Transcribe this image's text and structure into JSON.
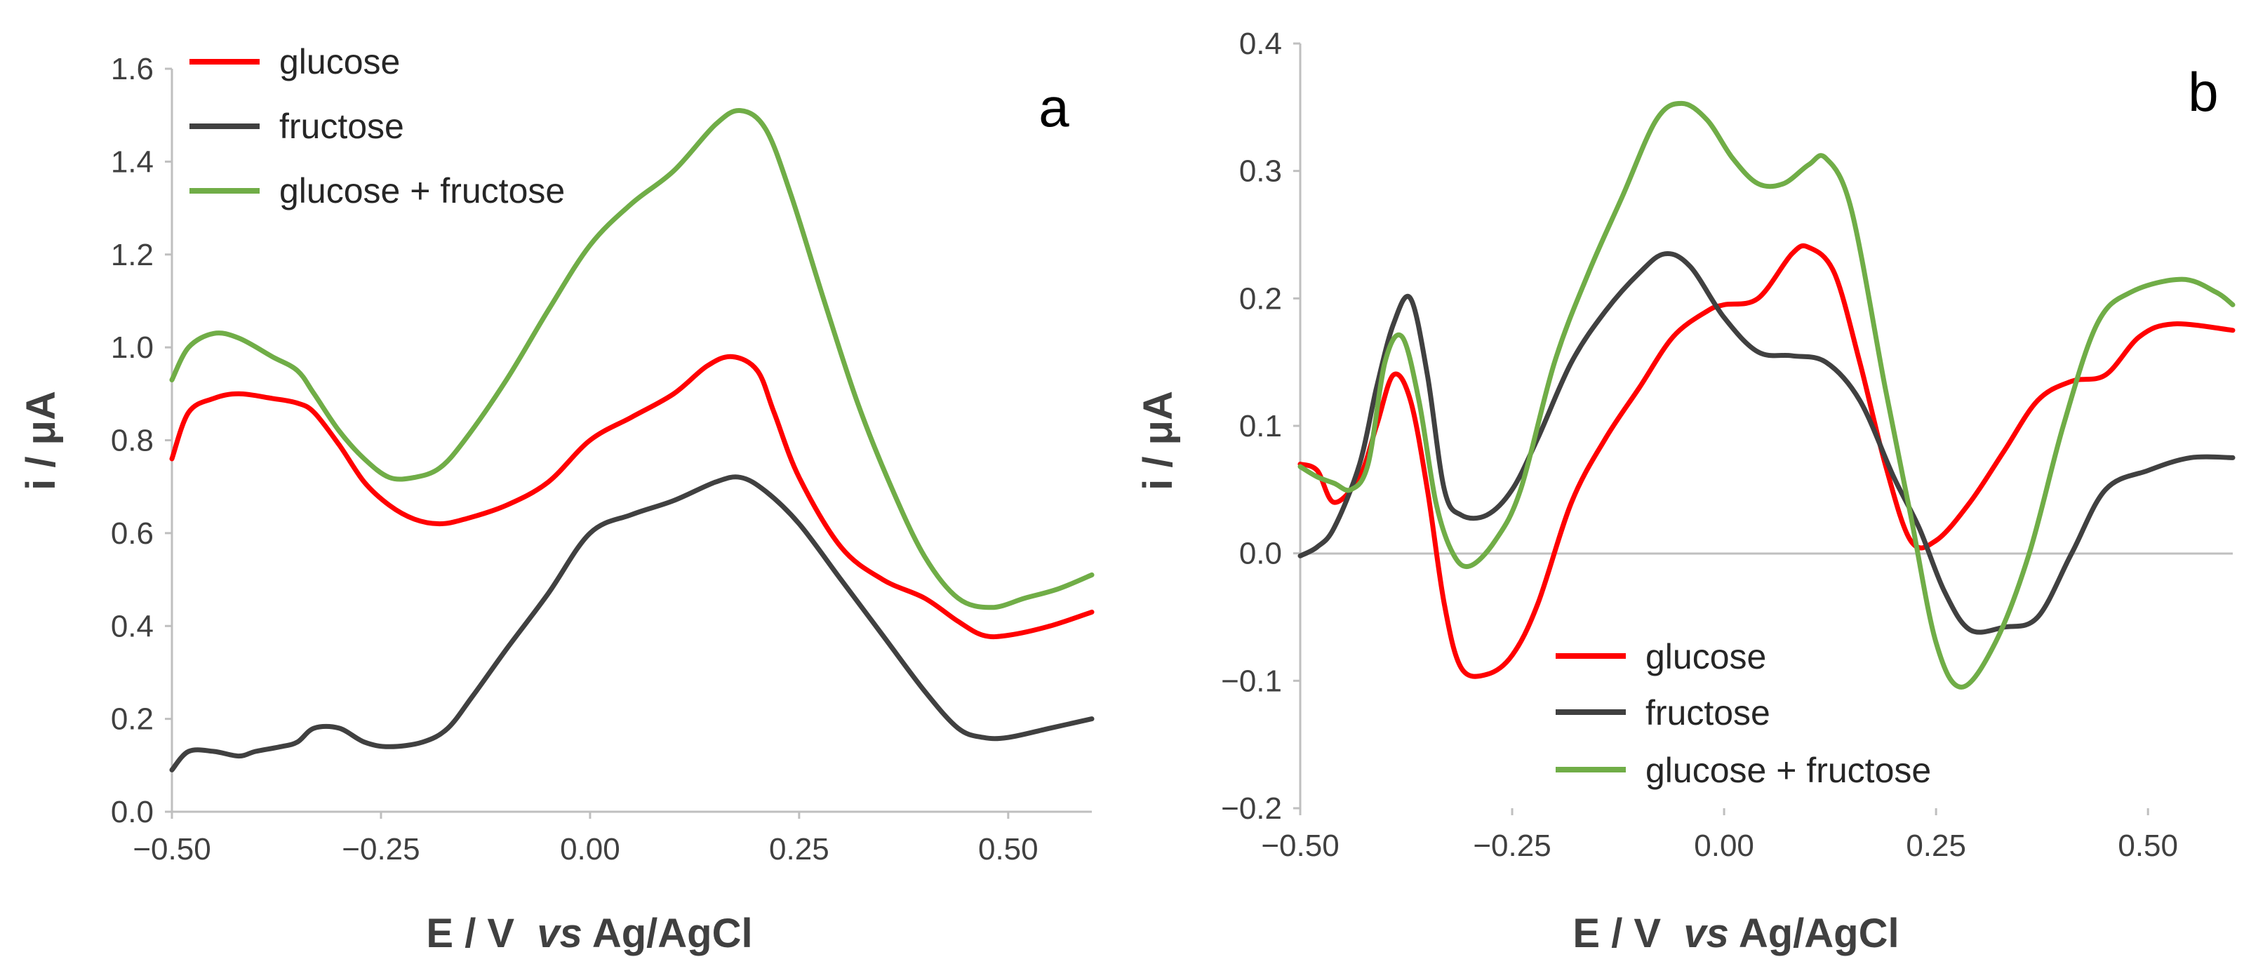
{
  "chart_data": [
    {
      "type": "line",
      "panel_label": "a",
      "xlabel_pre": "E / V  ",
      "xlabel_italic": "vs",
      "xlabel_post": " Ag/AgCl",
      "ylabel": "i / μA",
      "xlim": [
        -0.5,
        0.6
      ],
      "ylim": [
        0.0,
        1.6
      ],
      "x_ticks": [
        -0.5,
        -0.25,
        0.0,
        0.25,
        0.5
      ],
      "x_tick_labels": [
        "−0.50",
        "−0.25",
        "0.00",
        "0.25",
        "0.50"
      ],
      "y_ticks": [
        0.0,
        0.2,
        0.4,
        0.6,
        0.8,
        1.0,
        1.2,
        1.4,
        1.6
      ],
      "y_tick_labels": [
        "0.0",
        "0.2",
        "0.4",
        "0.6",
        "0.8",
        "1.0",
        "1.2",
        "1.4",
        "1.6"
      ],
      "legend_position": "top-left",
      "series": [
        {
          "name": "glucose",
          "color": "#ff0000",
          "points": [
            [
              -0.5,
              0.76
            ],
            [
              -0.48,
              0.86
            ],
            [
              -0.45,
              0.89
            ],
            [
              -0.42,
              0.9
            ],
            [
              -0.38,
              0.89
            ],
            [
              -0.35,
              0.88
            ],
            [
              -0.33,
              0.86
            ],
            [
              -0.3,
              0.79
            ],
            [
              -0.27,
              0.71
            ],
            [
              -0.24,
              0.66
            ],
            [
              -0.21,
              0.63
            ],
            [
              -0.18,
              0.62
            ],
            [
              -0.15,
              0.63
            ],
            [
              -0.1,
              0.66
            ],
            [
              -0.05,
              0.71
            ],
            [
              0.0,
              0.8
            ],
            [
              0.05,
              0.85
            ],
            [
              0.1,
              0.9
            ],
            [
              0.14,
              0.96
            ],
            [
              0.17,
              0.98
            ],
            [
              0.2,
              0.95
            ],
            [
              0.22,
              0.86
            ],
            [
              0.25,
              0.72
            ],
            [
              0.3,
              0.57
            ],
            [
              0.35,
              0.5
            ],
            [
              0.4,
              0.46
            ],
            [
              0.44,
              0.41
            ],
            [
              0.47,
              0.38
            ],
            [
              0.5,
              0.38
            ],
            [
              0.55,
              0.4
            ],
            [
              0.6,
              0.43
            ]
          ]
        },
        {
          "name": "fructose",
          "color": "#404040",
          "points": [
            [
              -0.5,
              0.09
            ],
            [
              -0.48,
              0.13
            ],
            [
              -0.45,
              0.13
            ],
            [
              -0.42,
              0.12
            ],
            [
              -0.4,
              0.13
            ],
            [
              -0.37,
              0.14
            ],
            [
              -0.35,
              0.15
            ],
            [
              -0.33,
              0.18
            ],
            [
              -0.3,
              0.18
            ],
            [
              -0.27,
              0.15
            ],
            [
              -0.24,
              0.14
            ],
            [
              -0.2,
              0.15
            ],
            [
              -0.17,
              0.18
            ],
            [
              -0.14,
              0.25
            ],
            [
              -0.1,
              0.35
            ],
            [
              -0.05,
              0.47
            ],
            [
              0.0,
              0.6
            ],
            [
              0.05,
              0.64
            ],
            [
              0.1,
              0.67
            ],
            [
              0.15,
              0.71
            ],
            [
              0.18,
              0.72
            ],
            [
              0.21,
              0.69
            ],
            [
              0.25,
              0.62
            ],
            [
              0.3,
              0.5
            ],
            [
              0.35,
              0.38
            ],
            [
              0.4,
              0.26
            ],
            [
              0.44,
              0.18
            ],
            [
              0.47,
              0.16
            ],
            [
              0.5,
              0.16
            ],
            [
              0.55,
              0.18
            ],
            [
              0.6,
              0.2
            ]
          ]
        },
        {
          "name": "glucose + fructose",
          "color": "#70ad47",
          "points": [
            [
              -0.5,
              0.93
            ],
            [
              -0.48,
              1.0
            ],
            [
              -0.45,
              1.03
            ],
            [
              -0.42,
              1.02
            ],
            [
              -0.38,
              0.98
            ],
            [
              -0.35,
              0.95
            ],
            [
              -0.33,
              0.9
            ],
            [
              -0.3,
              0.82
            ],
            [
              -0.27,
              0.76
            ],
            [
              -0.24,
              0.72
            ],
            [
              -0.21,
              0.72
            ],
            [
              -0.18,
              0.74
            ],
            [
              -0.15,
              0.8
            ],
            [
              -0.1,
              0.93
            ],
            [
              -0.05,
              1.08
            ],
            [
              0.0,
              1.22
            ],
            [
              0.05,
              1.31
            ],
            [
              0.1,
              1.38
            ],
            [
              0.15,
              1.48
            ],
            [
              0.18,
              1.51
            ],
            [
              0.21,
              1.47
            ],
            [
              0.24,
              1.33
            ],
            [
              0.28,
              1.1
            ],
            [
              0.32,
              0.88
            ],
            [
              0.36,
              0.7
            ],
            [
              0.4,
              0.55
            ],
            [
              0.44,
              0.46
            ],
            [
              0.48,
              0.44
            ],
            [
              0.52,
              0.46
            ],
            [
              0.56,
              0.48
            ],
            [
              0.6,
              0.51
            ]
          ]
        }
      ]
    },
    {
      "type": "line",
      "panel_label": "b",
      "xlabel_pre": "E / V  ",
      "xlabel_italic": "vs",
      "xlabel_post": " Ag/AgCl",
      "ylabel": "i / μA",
      "xlim": [
        -0.5,
        0.6
      ],
      "ylim": [
        -0.2,
        0.4
      ],
      "x_ticks": [
        -0.5,
        -0.25,
        0.0,
        0.25,
        0.5
      ],
      "x_tick_labels": [
        "−0.50",
        "−0.25",
        "0.00",
        "0.25",
        "0.50"
      ],
      "y_ticks": [
        -0.2,
        -0.1,
        0.0,
        0.1,
        0.2,
        0.3,
        0.4
      ],
      "y_tick_labels": [
        "−0.2",
        "−0.1",
        "0.0",
        "0.1",
        "0.2",
        "0.3",
        "0.4"
      ],
      "legend_position": "bottom-center",
      "series": [
        {
          "name": "glucose",
          "color": "#ff0000",
          "points": [
            [
              -0.5,
              0.07
            ],
            [
              -0.48,
              0.065
            ],
            [
              -0.46,
              0.04
            ],
            [
              -0.43,
              0.06
            ],
            [
              -0.41,
              0.1
            ],
            [
              -0.39,
              0.14
            ],
            [
              -0.37,
              0.12
            ],
            [
              -0.35,
              0.05
            ],
            [
              -0.33,
              -0.04
            ],
            [
              -0.31,
              -0.09
            ],
            [
              -0.28,
              -0.095
            ],
            [
              -0.25,
              -0.08
            ],
            [
              -0.22,
              -0.04
            ],
            [
              -0.18,
              0.04
            ],
            [
              -0.14,
              0.09
            ],
            [
              -0.1,
              0.13
            ],
            [
              -0.06,
              0.17
            ],
            [
              -0.02,
              0.19
            ],
            [
              0.0,
              0.195
            ],
            [
              0.04,
              0.2
            ],
            [
              0.08,
              0.235
            ],
            [
              0.1,
              0.24
            ],
            [
              0.13,
              0.22
            ],
            [
              0.16,
              0.15
            ],
            [
              0.19,
              0.07
            ],
            [
              0.22,
              0.01
            ],
            [
              0.25,
              0.01
            ],
            [
              0.29,
              0.04
            ],
            [
              0.33,
              0.08
            ],
            [
              0.37,
              0.12
            ],
            [
              0.41,
              0.135
            ],
            [
              0.45,
              0.14
            ],
            [
              0.49,
              0.17
            ],
            [
              0.53,
              0.18
            ],
            [
              0.6,
              0.175
            ]
          ]
        },
        {
          "name": "fructose",
          "color": "#404040",
          "points": [
            [
              -0.5,
              -0.002
            ],
            [
              -0.48,
              0.005
            ],
            [
              -0.46,
              0.02
            ],
            [
              -0.43,
              0.07
            ],
            [
              -0.41,
              0.13
            ],
            [
              -0.39,
              0.18
            ],
            [
              -0.37,
              0.2
            ],
            [
              -0.35,
              0.14
            ],
            [
              -0.33,
              0.05
            ],
            [
              -0.31,
              0.03
            ],
            [
              -0.28,
              0.03
            ],
            [
              -0.25,
              0.05
            ],
            [
              -0.22,
              0.09
            ],
            [
              -0.18,
              0.15
            ],
            [
              -0.14,
              0.19
            ],
            [
              -0.1,
              0.22
            ],
            [
              -0.07,
              0.235
            ],
            [
              -0.04,
              0.225
            ],
            [
              0.0,
              0.185
            ],
            [
              0.04,
              0.158
            ],
            [
              0.08,
              0.155
            ],
            [
              0.12,
              0.15
            ],
            [
              0.16,
              0.12
            ],
            [
              0.2,
              0.06
            ],
            [
              0.23,
              0.02
            ],
            [
              0.26,
              -0.03
            ],
            [
              0.29,
              -0.06
            ],
            [
              0.33,
              -0.058
            ],
            [
              0.37,
              -0.05
            ],
            [
              0.41,
              0.0
            ],
            [
              0.45,
              0.05
            ],
            [
              0.5,
              0.065
            ],
            [
              0.55,
              0.075
            ],
            [
              0.6,
              0.075
            ]
          ]
        },
        {
          "name": "glucose + fructose",
          "color": "#70ad47",
          "points": [
            [
              -0.5,
              0.068
            ],
            [
              -0.48,
              0.06
            ],
            [
              -0.46,
              0.055
            ],
            [
              -0.44,
              0.05
            ],
            [
              -0.42,
              0.07
            ],
            [
              -0.4,
              0.15
            ],
            [
              -0.38,
              0.17
            ],
            [
              -0.36,
              0.12
            ],
            [
              -0.34,
              0.04
            ],
            [
              -0.32,
              0.0
            ],
            [
              -0.3,
              -0.01
            ],
            [
              -0.27,
              0.01
            ],
            [
              -0.24,
              0.05
            ],
            [
              -0.2,
              0.15
            ],
            [
              -0.16,
              0.22
            ],
            [
              -0.12,
              0.28
            ],
            [
              -0.08,
              0.34
            ],
            [
              -0.05,
              0.353
            ],
            [
              -0.02,
              0.34
            ],
            [
              0.01,
              0.31
            ],
            [
              0.04,
              0.29
            ],
            [
              0.07,
              0.29
            ],
            [
              0.1,
              0.305
            ],
            [
              0.12,
              0.31
            ],
            [
              0.15,
              0.27
            ],
            [
              0.19,
              0.13
            ],
            [
              0.22,
              0.03
            ],
            [
              0.25,
              -0.07
            ],
            [
              0.28,
              -0.105
            ],
            [
              0.32,
              -0.07
            ],
            [
              0.36,
              0.0
            ],
            [
              0.4,
              0.1
            ],
            [
              0.44,
              0.18
            ],
            [
              0.48,
              0.205
            ],
            [
              0.54,
              0.215
            ],
            [
              0.58,
              0.205
            ],
            [
              0.6,
              0.195
            ]
          ]
        }
      ]
    }
  ]
}
